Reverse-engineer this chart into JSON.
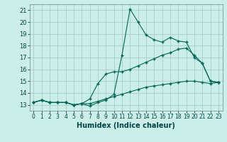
{
  "title": "",
  "xlabel": "Humidex (Indice chaleur)",
  "bg_color": "#cceee8",
  "grid_color": "#aacccc",
  "line_color": "#006655",
  "xlim": [
    -0.5,
    23.5
  ],
  "ylim": [
    12.5,
    21.5
  ],
  "xticks": [
    0,
    1,
    2,
    3,
    4,
    5,
    6,
    7,
    8,
    9,
    10,
    11,
    12,
    13,
    14,
    15,
    16,
    17,
    18,
    19,
    20,
    21,
    22,
    23
  ],
  "yticks": [
    13,
    14,
    15,
    16,
    17,
    18,
    19,
    20,
    21
  ],
  "line1_x": [
    0,
    1,
    2,
    3,
    4,
    5,
    6,
    7,
    8,
    9,
    10,
    11,
    12,
    13,
    14,
    15,
    16,
    17,
    18,
    19,
    20,
    21,
    22,
    23
  ],
  "line1_y": [
    13.2,
    13.4,
    13.2,
    13.2,
    13.2,
    13.0,
    13.1,
    12.9,
    13.2,
    13.4,
    13.9,
    17.2,
    21.1,
    20.0,
    18.9,
    18.5,
    18.3,
    18.7,
    18.4,
    18.3,
    17.0,
    16.5,
    15.0,
    14.9
  ],
  "line2_x": [
    0,
    1,
    2,
    3,
    4,
    5,
    6,
    7,
    8,
    9,
    10,
    11,
    12,
    13,
    14,
    15,
    16,
    17,
    18,
    19,
    20,
    21,
    22,
    23
  ],
  "line2_y": [
    13.2,
    13.4,
    13.2,
    13.2,
    13.2,
    13.0,
    13.1,
    13.5,
    14.8,
    15.6,
    15.8,
    15.8,
    16.0,
    16.3,
    16.6,
    16.9,
    17.2,
    17.4,
    17.7,
    17.8,
    17.2,
    16.5,
    15.0,
    14.9
  ],
  "line3_x": [
    0,
    1,
    2,
    3,
    4,
    5,
    6,
    7,
    8,
    9,
    10,
    11,
    12,
    13,
    14,
    15,
    16,
    17,
    18,
    19,
    20,
    21,
    22,
    23
  ],
  "line3_y": [
    13.2,
    13.4,
    13.2,
    13.2,
    13.2,
    13.0,
    13.1,
    13.1,
    13.3,
    13.5,
    13.7,
    13.9,
    14.1,
    14.3,
    14.5,
    14.6,
    14.7,
    14.8,
    14.9,
    15.0,
    15.0,
    14.9,
    14.8,
    14.9
  ]
}
